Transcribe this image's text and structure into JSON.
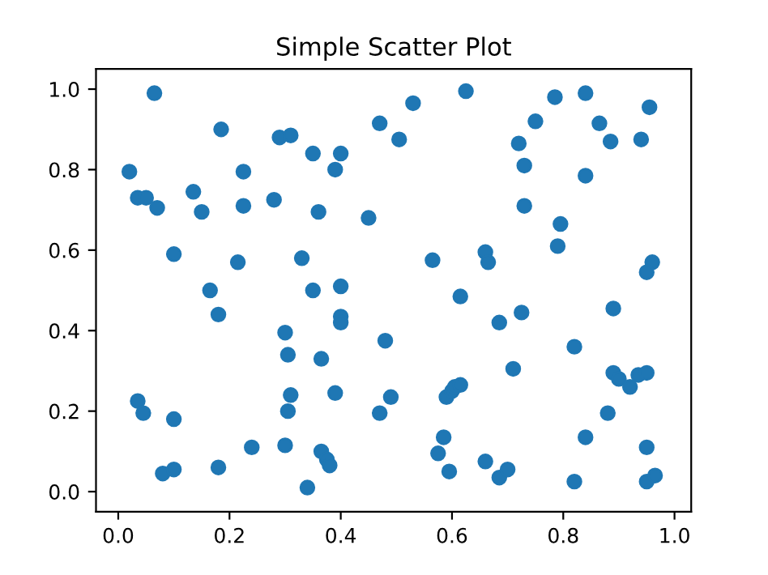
{
  "chart_data": {
    "type": "scatter",
    "title": "Simple Scatter Plot",
    "color": "#1f77b4",
    "marker": "circle",
    "x": [
      0.065,
      0.02,
      0.035,
      0.05,
      0.07,
      0.1,
      0.185,
      0.135,
      0.15,
      0.225,
      0.225,
      0.28,
      0.215,
      0.29,
      0.31,
      0.35,
      0.4,
      0.39,
      0.36,
      0.45,
      0.47,
      0.33,
      0.165,
      0.18,
      0.35,
      0.4,
      0.4,
      0.4,
      0.3,
      0.305,
      0.365,
      0.48,
      0.035,
      0.045,
      0.1,
      0.31,
      0.305,
      0.39,
      0.47,
      0.24,
      0.3,
      0.365,
      0.375,
      0.38,
      0.34,
      0.08,
      0.1,
      0.18,
      0.53,
      0.625,
      0.505,
      0.785,
      0.84,
      0.955,
      0.75,
      0.865,
      0.72,
      0.885,
      0.94,
      0.73,
      0.84,
      0.73,
      0.795,
      0.79,
      0.565,
      0.66,
      0.665,
      0.96,
      0.95,
      0.615,
      0.725,
      0.685,
      0.71,
      0.82,
      0.89,
      0.49,
      0.59,
      0.6,
      0.605,
      0.615,
      0.585,
      0.575,
      0.595,
      0.66,
      0.685,
      0.7,
      0.82,
      0.84,
      0.88,
      0.89,
      0.9,
      0.92,
      0.935,
      0.95,
      0.95,
      0.95,
      0.965
    ],
    "values": [
      0.99,
      0.795,
      0.73,
      0.73,
      0.705,
      0.59,
      0.9,
      0.745,
      0.695,
      0.795,
      0.71,
      0.725,
      0.57,
      0.88,
      0.885,
      0.84,
      0.84,
      0.8,
      0.695,
      0.68,
      0.915,
      0.58,
      0.5,
      0.44,
      0.5,
      0.51,
      0.435,
      0.42,
      0.395,
      0.34,
      0.33,
      0.375,
      0.225,
      0.195,
      0.18,
      0.24,
      0.2,
      0.245,
      0.195,
      0.11,
      0.115,
      0.1,
      0.08,
      0.065,
      0.01,
      0.045,
      0.055,
      0.06,
      0.965,
      0.995,
      0.875,
      0.98,
      0.99,
      0.955,
      0.92,
      0.915,
      0.865,
      0.87,
      0.875,
      0.81,
      0.785,
      0.71,
      0.665,
      0.61,
      0.575,
      0.595,
      0.57,
      0.57,
      0.545,
      0.485,
      0.445,
      0.42,
      0.305,
      0.36,
      0.455,
      0.235,
      0.235,
      0.25,
      0.26,
      0.265,
      0.135,
      0.095,
      0.05,
      0.075,
      0.035,
      0.055,
      0.025,
      0.135,
      0.195,
      0.295,
      0.28,
      0.26,
      0.29,
      0.295,
      0.11,
      0.025,
      0.04
    ],
    "xlim": [
      -0.04,
      1.03
    ],
    "ylim": [
      -0.05,
      1.05
    ],
    "xticks": [
      {
        "value": 0,
        "label": "0.0"
      },
      0.2,
      0.4,
      0.6,
      0.8,
      {
        "value": 1,
        "label": "1.0"
      }
    ],
    "yticks": [
      {
        "value": 0,
        "label": "0.0"
      },
      0.2,
      0.4,
      0.6,
      0.8,
      {
        "value": 1,
        "label": "1.0"
      }
    ]
  }
}
